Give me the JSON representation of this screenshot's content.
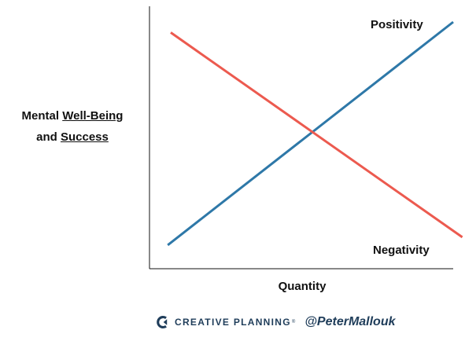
{
  "chart_data": {
    "type": "line",
    "title": "",
    "ylabel_line1_prefix": "Mental ",
    "ylabel_line1_underlined": "Well-Being",
    "ylabel_line2_prefix": "and ",
    "ylabel_line2_underlined": "Success",
    "xlabel": "Quantity",
    "xlim": [
      0,
      10
    ],
    "ylim": [
      0,
      10
    ],
    "grid": false,
    "series": [
      {
        "name": "Positivity",
        "color": "#2e78a8",
        "x": [
          0.6,
          10.0
        ],
        "y": [
          0.9,
          9.4
        ]
      },
      {
        "name": "Negativity",
        "color": "#ec5a4f",
        "x": [
          0.7,
          10.3
        ],
        "y": [
          9.0,
          1.2
        ]
      }
    ]
  },
  "footer": {
    "brand_icon": "creative-planning-logo-icon",
    "brand_name": "CREATIVE PLANNING",
    "trademark": "®",
    "handle": "@PeterMallouk"
  }
}
